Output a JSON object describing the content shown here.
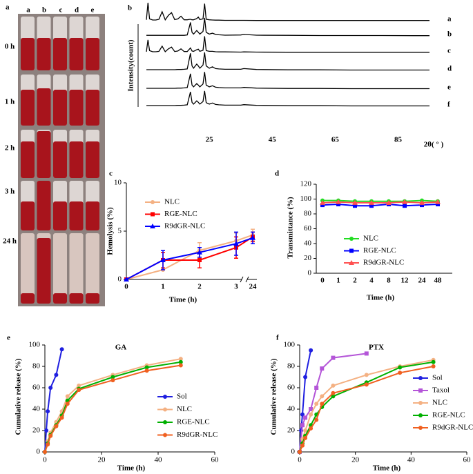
{
  "photo": {
    "panel_label": "a",
    "columns": [
      "a",
      "b",
      "c",
      "d",
      "e"
    ],
    "rows": [
      "0 h",
      "1 h",
      "2 h",
      "3 h",
      "24 h"
    ]
  },
  "chart_data": [
    {
      "type": "line",
      "panel_label": "b",
      "y_label": "Intensity(count)",
      "x_label": "2θ( ° )",
      "color": "#000000",
      "xlim": [
        5,
        95
      ],
      "xticks": [
        25,
        45,
        65,
        85
      ],
      "x": [
        5,
        5.5,
        6,
        7,
        8,
        9,
        10,
        11,
        12,
        13,
        14,
        15,
        16,
        17,
        18,
        19,
        19.5,
        20,
        21,
        21.5,
        22,
        23,
        23.5,
        24,
        25,
        26,
        27,
        28,
        30,
        35,
        36,
        40,
        50,
        60,
        70,
        80,
        90,
        95
      ],
      "series": [
        {
          "name": "a",
          "values": [
            5,
            100,
            10,
            4,
            4,
            8,
            50,
            5,
            30,
            45,
            6,
            10,
            25,
            5,
            5,
            8,
            5,
            5,
            12,
            20,
            6,
            10,
            95,
            8,
            5,
            4,
            3,
            3,
            2,
            2,
            2,
            1,
            1,
            1,
            1,
            1,
            1,
            1
          ]
        },
        {
          "name": "b",
          "values": [
            3,
            3,
            3,
            3,
            3,
            3,
            3,
            3,
            3,
            3,
            3,
            3,
            3,
            3,
            5,
            75,
            20,
            10,
            30,
            20,
            10,
            25,
            100,
            20,
            10,
            15,
            8,
            6,
            4,
            5,
            8,
            4,
            3,
            2,
            2,
            2,
            1,
            1
          ]
        },
        {
          "name": "c",
          "values": [
            4,
            70,
            10,
            4,
            4,
            6,
            35,
            4,
            20,
            30,
            5,
            8,
            20,
            5,
            5,
            25,
            8,
            6,
            15,
            18,
            6,
            12,
            90,
            10,
            6,
            6,
            4,
            3,
            3,
            2,
            3,
            2,
            1,
            1,
            1,
            1,
            1,
            1
          ]
        },
        {
          "name": "d",
          "values": [
            4,
            4,
            4,
            4,
            4,
            4,
            4,
            4,
            4,
            4,
            4,
            5,
            5,
            6,
            8,
            95,
            25,
            12,
            35,
            25,
            12,
            30,
            100,
            25,
            12,
            20,
            10,
            8,
            6,
            6,
            10,
            5,
            3,
            3,
            2,
            2,
            2,
            2
          ]
        },
        {
          "name": "e",
          "values": [
            4,
            4,
            4,
            4,
            4,
            4,
            4,
            4,
            4,
            4,
            4,
            5,
            5,
            6,
            8,
            85,
            22,
            12,
            30,
            22,
            12,
            28,
            95,
            22,
            12,
            18,
            10,
            8,
            6,
            6,
            9,
            5,
            3,
            3,
            2,
            2,
            2,
            2
          ]
        },
        {
          "name": "f",
          "values": [
            4,
            4,
            4,
            4,
            4,
            4,
            4,
            4,
            4,
            4,
            4,
            5,
            5,
            6,
            8,
            80,
            22,
            12,
            30,
            22,
            12,
            26,
            85,
            20,
            12,
            18,
            10,
            8,
            6,
            6,
            9,
            5,
            3,
            3,
            2,
            2,
            2,
            2
          ]
        }
      ]
    },
    {
      "type": "line",
      "panel_label": "c",
      "y_label": "Hemolysis (%)",
      "x_label": "Time (h)",
      "categories": [
        "0",
        "1",
        "2",
        "3",
        "24"
      ],
      "ylim": [
        0,
        10
      ],
      "yticks": [
        0,
        5,
        10
      ],
      "legend": "upper left",
      "series": [
        {
          "name": "NLC",
          "color": "#f4b183",
          "marker": "circle",
          "values": [
            0,
            1,
            3,
            4,
            4.6
          ],
          "errors": [
            0,
            0,
            0.8,
            0.8,
            0.6
          ]
        },
        {
          "name": "RGE-NLC",
          "color": "#ff0000",
          "marker": "square",
          "values": [
            0,
            2,
            2,
            3.3,
            4.4
          ],
          "errors": [
            0,
            0.8,
            0.8,
            1.1,
            0.5
          ]
        },
        {
          "name": "R9dGR-NLC",
          "color": "#0000ff",
          "marker": "triangle",
          "values": [
            0,
            2,
            2.8,
            3.7,
            4.3
          ],
          "errors": [
            0,
            1,
            0.5,
            1.2,
            0.6
          ]
        }
      ]
    },
    {
      "type": "line",
      "panel_label": "d",
      "y_label": "Transmittance (%)",
      "x_label": "Time (h)",
      "categories": [
        "0",
        "1",
        "2",
        "4",
        "8",
        "12",
        "24",
        "48"
      ],
      "ylim": [
        0,
        120
      ],
      "yticks": [
        0,
        20,
        40,
        60,
        80,
        100,
        120
      ],
      "legend": "lower center",
      "series": [
        {
          "name": "NLC",
          "color": "#22dd22",
          "marker": "circle",
          "values": [
            98,
            98,
            97,
            97,
            97,
            97,
            98,
            97
          ]
        },
        {
          "name": "RGE-NLC",
          "color": "#0000ff",
          "marker": "square",
          "values": [
            92,
            93,
            91,
            91,
            93,
            91,
            92,
            93
          ]
        },
        {
          "name": "R9dGR-NLC",
          "color": "#ff5050",
          "marker": "triangle",
          "values": [
            95,
            96,
            95,
            95,
            95,
            96,
            95,
            96
          ]
        }
      ]
    },
    {
      "type": "line",
      "panel_label": "e",
      "title": "GA",
      "y_label": "Cumulative release (%)",
      "x_label": "Time (h)",
      "xlim": [
        0,
        60
      ],
      "xticks": [
        0,
        20,
        40,
        60
      ],
      "ylim": [
        0,
        100
      ],
      "yticks": [
        0,
        20,
        40,
        60,
        80,
        100
      ],
      "legend": "lower right",
      "series": [
        {
          "name": "Sol",
          "color": "#1f1fe0",
          "marker": "circle",
          "x": [
            0,
            0.5,
            1,
            2,
            4,
            6
          ],
          "values": [
            0,
            20,
            38,
            60,
            72,
            96
          ]
        },
        {
          "name": "NLC",
          "color": "#f4b183",
          "marker": "circle",
          "x": [
            0,
            1,
            2,
            4,
            6,
            8,
            12,
            24,
            36,
            48
          ],
          "values": [
            0,
            10,
            18,
            28,
            38,
            52,
            62,
            72,
            81,
            87
          ]
        },
        {
          "name": "RGE-NLC",
          "color": "#00b000",
          "marker": "circle",
          "x": [
            0,
            1,
            2,
            4,
            6,
            8,
            12,
            24,
            36,
            48
          ],
          "values": [
            0,
            8,
            16,
            25,
            34,
            48,
            59,
            70,
            79,
            84
          ]
        },
        {
          "name": "R9dGR-NLC",
          "color": "#f06020",
          "marker": "circle",
          "x": [
            0,
            1,
            2,
            4,
            6,
            8,
            12,
            24,
            36,
            48
          ],
          "values": [
            0,
            7,
            15,
            24,
            32,
            45,
            58,
            67,
            76,
            81
          ]
        }
      ]
    },
    {
      "type": "line",
      "panel_label": "f",
      "title": "PTX",
      "y_label": "Cumulative release (%)",
      "x_label": "Time (h)",
      "xlim": [
        0,
        60
      ],
      "xticks": [
        0,
        20,
        40,
        60
      ],
      "ylim": [
        0,
        100
      ],
      "yticks": [
        0,
        20,
        40,
        60,
        80,
        100
      ],
      "legend": "lower right",
      "series": [
        {
          "name": "Sol",
          "color": "#1f1fe0",
          "marker": "circle",
          "x": [
            0,
            0.5,
            1,
            2,
            4
          ],
          "values": [
            0,
            20,
            35,
            70,
            95
          ]
        },
        {
          "name": "Taxol",
          "color": "#b455d8",
          "marker": "square",
          "x": [
            0,
            1,
            2,
            4,
            6,
            8,
            12,
            24
          ],
          "values": [
            0,
            25,
            32,
            40,
            60,
            78,
            88,
            92
          ]
        },
        {
          "name": "NLC",
          "color": "#f4b183",
          "marker": "circle",
          "x": [
            0,
            1,
            2,
            4,
            6,
            8,
            12,
            24,
            36,
            48
          ],
          "values": [
            0,
            12,
            20,
            35,
            45,
            52,
            62,
            72,
            80,
            86
          ]
        },
        {
          "name": "RGE-NLC",
          "color": "#00b000",
          "marker": "circle",
          "x": [
            0,
            1,
            2,
            4,
            6,
            8,
            12,
            24,
            36,
            48
          ],
          "values": [
            0,
            8,
            15,
            25,
            35,
            42,
            52,
            65,
            79,
            84
          ]
        },
        {
          "name": "R9dGR-NLC",
          "color": "#f06020",
          "marker": "circle",
          "x": [
            0,
            1,
            2,
            4,
            6,
            8,
            12,
            24,
            36,
            48
          ],
          "values": [
            0,
            6,
            13,
            22,
            30,
            45,
            55,
            63,
            74,
            80
          ]
        }
      ]
    }
  ]
}
